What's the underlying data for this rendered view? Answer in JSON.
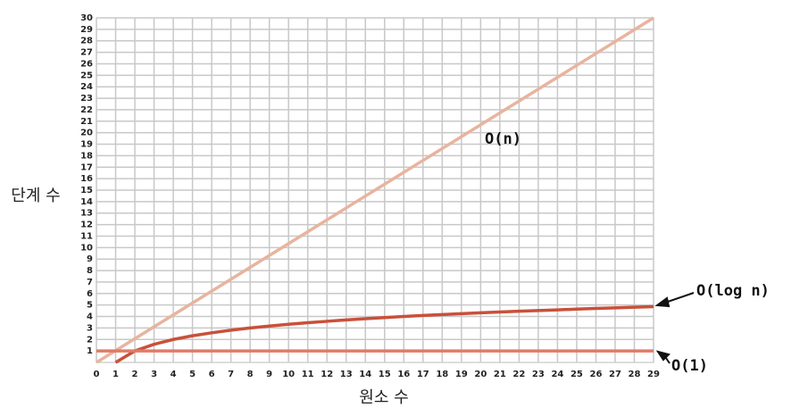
{
  "chart_data": {
    "type": "line",
    "x_label": "원소 수",
    "y_label": "단계 수",
    "xlim": [
      0,
      29
    ],
    "ylim": [
      0,
      30
    ],
    "xticks": [
      0,
      1,
      2,
      3,
      4,
      5,
      6,
      7,
      8,
      9,
      10,
      11,
      12,
      13,
      14,
      15,
      16,
      17,
      18,
      19,
      20,
      21,
      22,
      23,
      24,
      25,
      26,
      27,
      28,
      29
    ],
    "yticks": [
      1,
      2,
      3,
      4,
      5,
      6,
      7,
      8,
      9,
      10,
      11,
      12,
      13,
      14,
      15,
      16,
      17,
      18,
      19,
      20,
      21,
      22,
      23,
      24,
      25,
      26,
      27,
      28,
      29,
      30
    ],
    "grid": true,
    "series": [
      {
        "name": "O(n)",
        "color": "#e8b49e",
        "x": [
          0,
          29
        ],
        "values": [
          0,
          30
        ]
      },
      {
        "name": "O(log n)",
        "color": "#c9503a",
        "x": [
          1,
          2,
          3,
          4,
          5,
          6,
          7,
          8,
          9,
          10,
          11,
          12,
          13,
          14,
          15,
          16,
          17,
          18,
          19,
          20,
          21,
          22,
          23,
          24,
          25,
          26,
          27,
          28,
          29
        ],
        "values": [
          0,
          1,
          1.58,
          2,
          2.32,
          2.58,
          2.81,
          3,
          3.17,
          3.32,
          3.46,
          3.58,
          3.7,
          3.81,
          3.91,
          4,
          4.09,
          4.17,
          4.25,
          4.32,
          4.39,
          4.46,
          4.52,
          4.58,
          4.64,
          4.7,
          4.75,
          4.81,
          4.86
        ]
      },
      {
        "name": "O(1)",
        "color": "#e07b68",
        "x": [
          0,
          29
        ],
        "values": [
          1,
          1
        ]
      }
    ]
  }
}
